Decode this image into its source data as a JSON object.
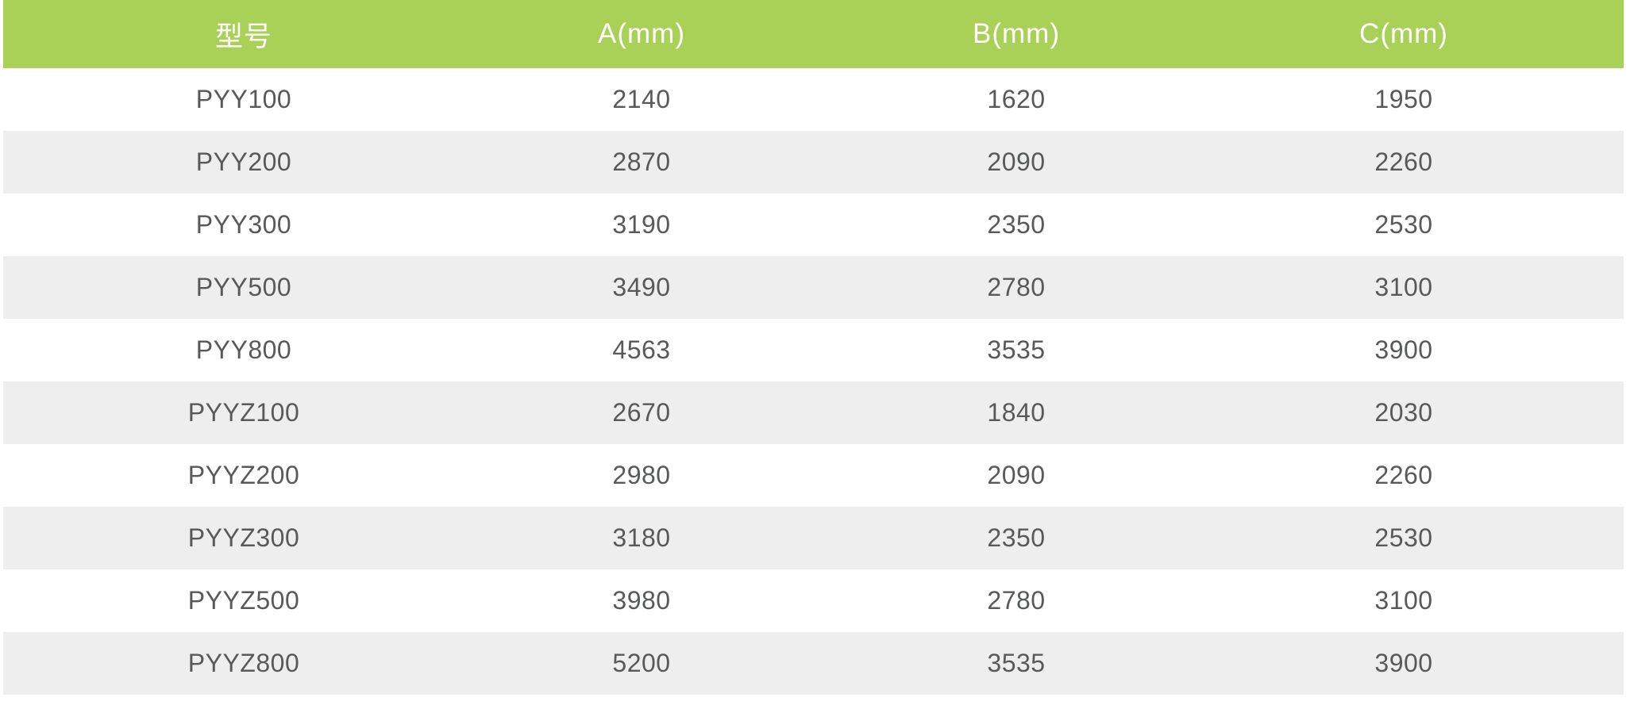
{
  "chart_data": {
    "type": "table",
    "columns": [
      "型号",
      "A(mm)",
      "B(mm)",
      "C(mm)"
    ],
    "rows": [
      [
        "PYY100",
        2140,
        1620,
        1950
      ],
      [
        "PYY200",
        2870,
        2090,
        2260
      ],
      [
        "PYY300",
        3190,
        2350,
        2530
      ],
      [
        "PYY500",
        3490,
        2780,
        3100
      ],
      [
        "PYY800",
        4563,
        3535,
        3900
      ],
      [
        "PYYZ100",
        2670,
        1840,
        2030
      ],
      [
        "PYYZ200",
        2980,
        2090,
        2260
      ],
      [
        "PYYZ300",
        3180,
        2350,
        2530
      ],
      [
        "PYYZ500",
        3980,
        2780,
        3100
      ],
      [
        "PYYZ800",
        5200,
        3535,
        3900
      ]
    ],
    "layout": {
      "header_position": "top",
      "zebra_striping": true,
      "alignment": "center",
      "gridlines": false
    }
  },
  "style": {
    "header_bg": "#a9d158",
    "header_text": "#ffffff",
    "row_bg": "#ffffff",
    "row_alt_bg": "#eeeeee",
    "cell_text": "#58595b"
  }
}
